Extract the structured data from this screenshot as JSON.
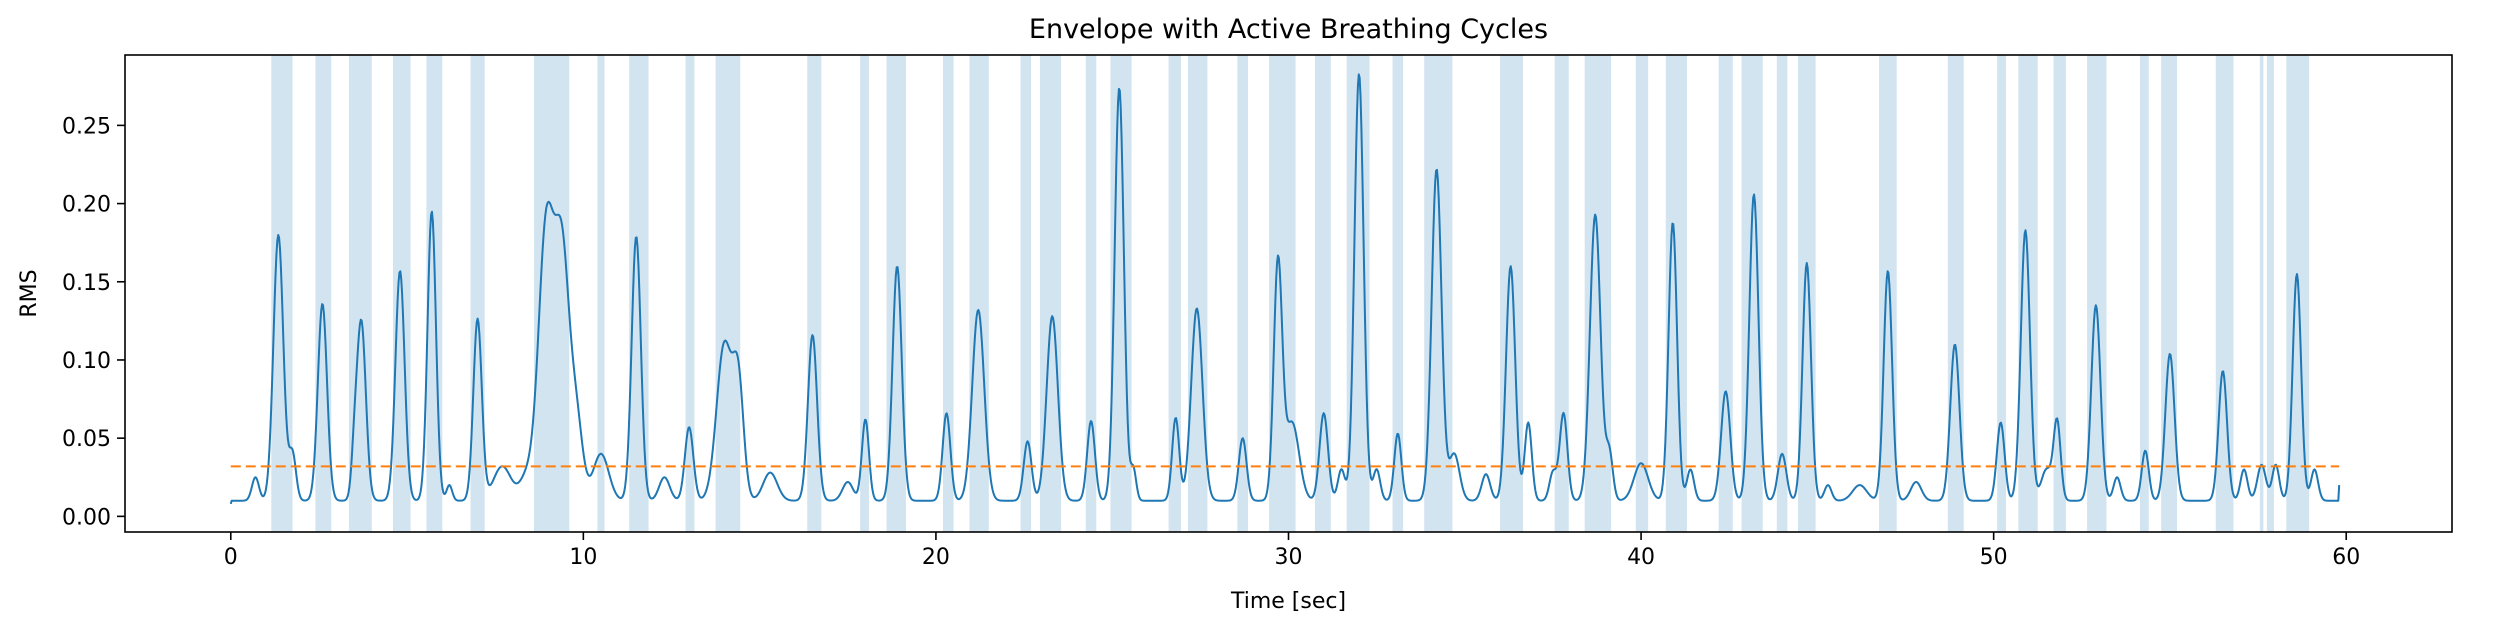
{
  "chart_data": {
    "type": "line",
    "title": "Envelope with Active Breathing Cycles",
    "xlabel": "Time [sec]",
    "ylabel": "RMS",
    "xlim": [
      -3,
      63
    ],
    "ylim": [
      -0.01,
      0.295
    ],
    "xticks": [
      0,
      10,
      20,
      30,
      40,
      50,
      60
    ],
    "yticks": [
      0.0,
      0.05,
      0.1,
      0.15,
      0.2,
      0.25
    ],
    "ytick_labels": [
      "0.00",
      "0.05",
      "0.10",
      "0.15",
      "0.20",
      "0.25"
    ],
    "grid": false,
    "legend": "none",
    "colors": {
      "envelope": "#1f77b4",
      "threshold": "#ff7f0e",
      "active_span": "#1f77b4",
      "axes": "#000000"
    },
    "series": [
      {
        "kind": "line",
        "baseline": 0.01,
        "start": [
          0.0,
          0.008
        ],
        "end": [
          59.8,
          0.02
        ],
        "peaks": [
          [
            0.7,
            0.025,
            0.1
          ],
          [
            1.35,
            0.18,
            0.14
          ],
          [
            1.75,
            0.04,
            0.1
          ],
          [
            2.6,
            0.136,
            0.13
          ],
          [
            3.5,
            0.03,
            0.08
          ],
          [
            3.7,
            0.125,
            0.13
          ],
          [
            4.8,
            0.157,
            0.13
          ],
          [
            5.7,
            0.195,
            0.12
          ],
          [
            6.2,
            0.02,
            0.08
          ],
          [
            7.0,
            0.126,
            0.12
          ],
          [
            7.7,
            0.032,
            0.25
          ],
          [
            8.4,
            0.025,
            0.2
          ],
          [
            8.95,
            0.185,
            0.22
          ],
          [
            9.4,
            0.16,
            0.2
          ],
          [
            9.8,
            0.06,
            0.18
          ],
          [
            10.5,
            0.04,
            0.22
          ],
          [
            11.5,
            0.179,
            0.13
          ],
          [
            12.3,
            0.025,
            0.15
          ],
          [
            13.0,
            0.057,
            0.12
          ],
          [
            14.0,
            0.11,
            0.22
          ],
          [
            14.4,
            0.08,
            0.15
          ],
          [
            15.3,
            0.028,
            0.2
          ],
          [
            16.5,
            0.116,
            0.13
          ],
          [
            17.5,
            0.022,
            0.15
          ],
          [
            18.0,
            0.062,
            0.1
          ],
          [
            18.9,
            0.16,
            0.13
          ],
          [
            20.3,
            0.066,
            0.11
          ],
          [
            21.2,
            0.132,
            0.17
          ],
          [
            22.6,
            0.048,
            0.11
          ],
          [
            23.3,
            0.128,
            0.16
          ],
          [
            24.4,
            0.061,
            0.11
          ],
          [
            25.2,
            0.274,
            0.13
          ],
          [
            25.6,
            0.03,
            0.08
          ],
          [
            26.8,
            0.063,
            0.1
          ],
          [
            27.4,
            0.133,
            0.16
          ],
          [
            28.7,
            0.05,
            0.11
          ],
          [
            29.7,
            0.16,
            0.12
          ],
          [
            30.1,
            0.06,
            0.2
          ],
          [
            31.0,
            0.066,
            0.12
          ],
          [
            31.5,
            0.03,
            0.1
          ],
          [
            32.0,
            0.283,
            0.13
          ],
          [
            32.5,
            0.03,
            0.1
          ],
          [
            33.1,
            0.053,
            0.1
          ],
          [
            34.2,
            0.222,
            0.14
          ],
          [
            34.7,
            0.04,
            0.15
          ],
          [
            35.6,
            0.027,
            0.12
          ],
          [
            36.3,
            0.16,
            0.13
          ],
          [
            36.8,
            0.06,
            0.1
          ],
          [
            37.5,
            0.028,
            0.1
          ],
          [
            37.8,
            0.066,
            0.11
          ],
          [
            38.7,
            0.193,
            0.15
          ],
          [
            39.1,
            0.04,
            0.1
          ],
          [
            40.0,
            0.034,
            0.2
          ],
          [
            40.9,
            0.188,
            0.12
          ],
          [
            41.4,
            0.03,
            0.1
          ],
          [
            42.4,
            0.08,
            0.13
          ],
          [
            43.2,
            0.206,
            0.13
          ],
          [
            44.0,
            0.04,
            0.12
          ],
          [
            44.7,
            0.162,
            0.12
          ],
          [
            45.3,
            0.02,
            0.1
          ],
          [
            46.2,
            0.02,
            0.2
          ],
          [
            47.0,
            0.157,
            0.12
          ],
          [
            47.8,
            0.022,
            0.15
          ],
          [
            48.9,
            0.11,
            0.13
          ],
          [
            50.2,
            0.06,
            0.11
          ],
          [
            50.9,
            0.183,
            0.13
          ],
          [
            51.5,
            0.03,
            0.15
          ],
          [
            51.8,
            0.06,
            0.1
          ],
          [
            52.9,
            0.135,
            0.13
          ],
          [
            53.5,
            0.025,
            0.1
          ],
          [
            54.3,
            0.042,
            0.1
          ],
          [
            55.0,
            0.104,
            0.13
          ],
          [
            56.5,
            0.093,
            0.12
          ],
          [
            57.1,
            0.03,
            0.1
          ],
          [
            57.6,
            0.033,
            0.12
          ],
          [
            58.0,
            0.033,
            0.1
          ],
          [
            58.6,
            0.155,
            0.12
          ],
          [
            59.1,
            0.03,
            0.1
          ]
        ]
      },
      {
        "kind": "hline",
        "style": "dashed",
        "y": 0.032,
        "x": [
          0,
          59.8
        ]
      }
    ],
    "active_spans": [
      [
        1.15,
        1.75
      ],
      [
        2.4,
        2.85
      ],
      [
        3.35,
        4.0
      ],
      [
        4.6,
        5.1
      ],
      [
        5.55,
        6.0
      ],
      [
        6.8,
        7.2
      ],
      [
        8.6,
        9.6
      ],
      [
        10.4,
        10.6
      ],
      [
        11.3,
        11.85
      ],
      [
        12.9,
        13.15
      ],
      [
        13.75,
        14.45
      ],
      [
        16.35,
        16.75
      ],
      [
        17.85,
        18.1
      ],
      [
        18.6,
        19.15
      ],
      [
        20.2,
        20.5
      ],
      [
        20.95,
        21.5
      ],
      [
        22.4,
        22.7
      ],
      [
        22.95,
        23.55
      ],
      [
        24.25,
        24.55
      ],
      [
        24.95,
        25.55
      ],
      [
        26.6,
        26.95
      ],
      [
        27.15,
        27.7
      ],
      [
        28.55,
        28.85
      ],
      [
        29.45,
        30.2
      ],
      [
        30.75,
        31.2
      ],
      [
        31.65,
        32.3
      ],
      [
        32.95,
        33.25
      ],
      [
        33.85,
        34.65
      ],
      [
        36.0,
        36.65
      ],
      [
        37.55,
        37.95
      ],
      [
        38.4,
        39.15
      ],
      [
        39.85,
        40.2
      ],
      [
        40.7,
        41.3
      ],
      [
        42.2,
        42.6
      ],
      [
        42.85,
        43.45
      ],
      [
        43.85,
        44.15
      ],
      [
        44.45,
        44.95
      ],
      [
        46.75,
        47.25
      ],
      [
        48.7,
        49.15
      ],
      [
        50.1,
        50.35
      ],
      [
        50.7,
        51.25
      ],
      [
        51.7,
        52.05
      ],
      [
        52.65,
        53.2
      ],
      [
        54.15,
        54.4
      ],
      [
        54.75,
        55.2
      ],
      [
        56.3,
        56.8
      ],
      [
        57.55,
        57.65
      ],
      [
        57.75,
        57.95
      ],
      [
        58.3,
        58.95
      ]
    ]
  }
}
